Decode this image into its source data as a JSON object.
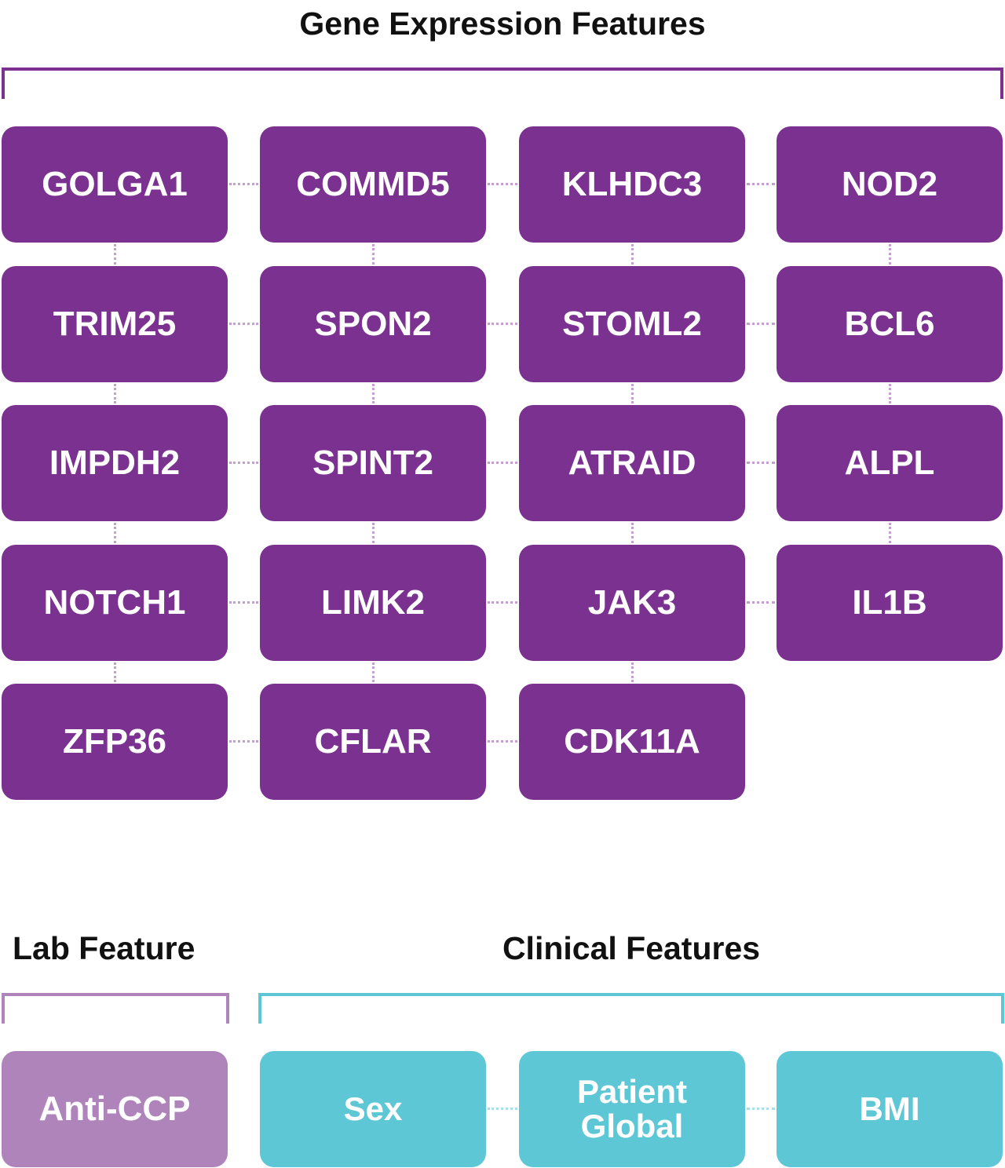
{
  "gene_section": {
    "title": "Gene Expression Features",
    "color": "#7A3190",
    "connector_color": "#C49FCF",
    "rows": [
      [
        "GOLGA1",
        "COMMD5",
        "KLHDC3",
        "NOD2"
      ],
      [
        "TRIM25",
        "SPON2",
        "STOML2",
        "BCL6"
      ],
      [
        "IMPDH2",
        "SPINT2",
        "ATRAID",
        "ALPL"
      ],
      [
        "NOTCH1",
        "LIMK2",
        "JAK3",
        "IL1B"
      ],
      [
        "ZFP36",
        "CFLAR",
        "CDK11A"
      ]
    ]
  },
  "lab_section": {
    "title": "Lab Feature",
    "color": "#AE84BA",
    "items": [
      "Anti-CCP"
    ]
  },
  "clinical_section": {
    "title": "Clinical Features",
    "color": "#5EC7D5",
    "connector_color": "#A6E0E8",
    "items": [
      "Sex",
      "Patient Global",
      "BMI"
    ]
  }
}
